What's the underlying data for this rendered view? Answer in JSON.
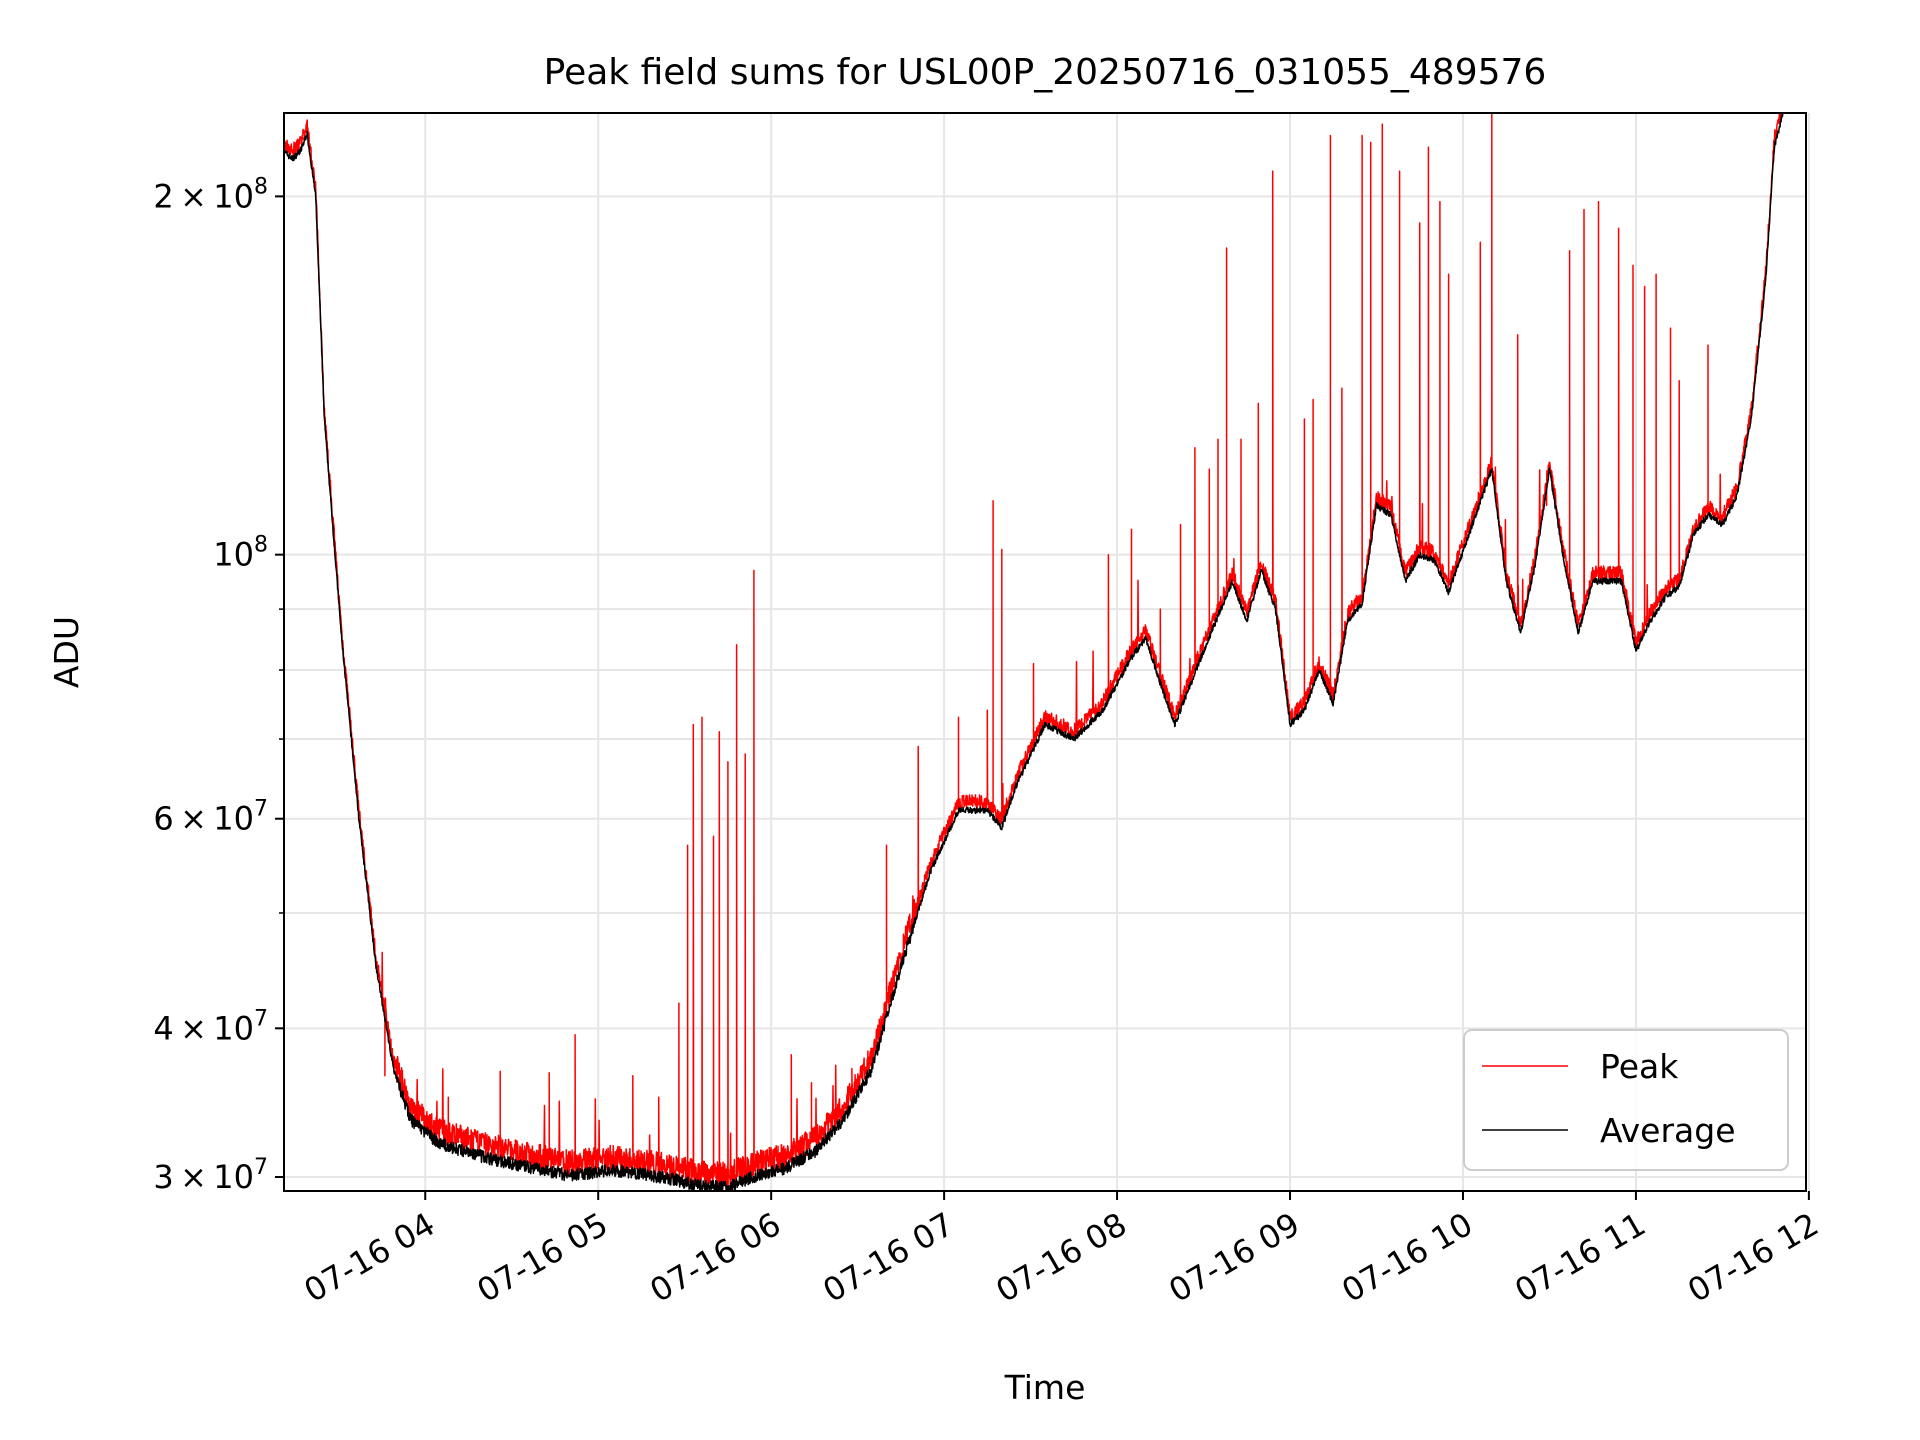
{
  "chart_data": {
    "type": "line",
    "title": "Peak field sums for USL00P_20250716_031055_489576",
    "xlabel": "Time",
    "ylabel": "ADU",
    "yscale": "log",
    "xlim": [
      "2025-07-16 03:11",
      "2025-07-16 11:59"
    ],
    "ylim": [
      29200000,
      235000000
    ],
    "x_ticks": [
      "07-16 04",
      "07-16 05",
      "07-16 06",
      "07-16 07",
      "07-16 08",
      "07-16 09",
      "07-16 10",
      "07-16 11",
      "07-16 12"
    ],
    "y_ticks": [
      {
        "value": 30000000,
        "base": "3",
        "exp": "7"
      },
      {
        "value": 40000000,
        "base": "4",
        "exp": "7"
      },
      {
        "value": 60000000,
        "base": "6",
        "exp": "7"
      },
      {
        "value": 100000000,
        "base": "",
        "exp": "8"
      },
      {
        "value": 200000000,
        "base": "2",
        "exp": "8"
      }
    ],
    "grid": true,
    "legend": {
      "position": "lower-right",
      "entries": [
        "Peak",
        "Average"
      ]
    },
    "series": [
      {
        "name": "Average",
        "color": "#000000",
        "points": [
          [
            "03:11",
            218000000
          ],
          [
            "03:14",
            215000000
          ],
          [
            "03:17",
            219000000
          ],
          [
            "03:19",
            226000000
          ],
          [
            "03:22",
            200000000
          ],
          [
            "03:25",
            130000000
          ],
          [
            "03:31",
            85000000
          ],
          [
            "03:37",
            60000000
          ],
          [
            "03:43",
            45000000
          ],
          [
            "03:49",
            37000000
          ],
          [
            "03:55",
            33500000
          ],
          [
            "04:05",
            32000000
          ],
          [
            "04:20",
            31200000
          ],
          [
            "04:35",
            30600000
          ],
          [
            "04:50",
            30100000
          ],
          [
            "05:05",
            30400000
          ],
          [
            "05:15",
            30200000
          ],
          [
            "05:25",
            29900000
          ],
          [
            "05:35",
            29500000
          ],
          [
            "05:45",
            29400000
          ],
          [
            "05:55",
            30100000
          ],
          [
            "06:05",
            30500000
          ],
          [
            "06:15",
            31500000
          ],
          [
            "06:25",
            33500000
          ],
          [
            "06:35",
            37000000
          ],
          [
            "06:45",
            45000000
          ],
          [
            "06:55",
            54000000
          ],
          [
            "07:05",
            61000000
          ],
          [
            "07:15",
            61000000
          ],
          [
            "07:20",
            59000000
          ],
          [
            "07:25",
            64000000
          ],
          [
            "07:35",
            72000000
          ],
          [
            "07:40",
            71000000
          ],
          [
            "07:45",
            70000000
          ],
          [
            "07:55",
            74000000
          ],
          [
            "08:05",
            82000000
          ],
          [
            "08:10",
            85000000
          ],
          [
            "08:15",
            78000000
          ],
          [
            "08:20",
            72000000
          ],
          [
            "08:30",
            83000000
          ],
          [
            "08:40",
            95000000
          ],
          [
            "08:45",
            88000000
          ],
          [
            "08:50",
            97000000
          ],
          [
            "08:55",
            90000000
          ],
          [
            "09:00",
            72000000
          ],
          [
            "09:05",
            74000000
          ],
          [
            "09:10",
            80000000
          ],
          [
            "09:15",
            75000000
          ],
          [
            "09:20",
            88000000
          ],
          [
            "09:25",
            91000000
          ],
          [
            "09:30",
            110000000
          ],
          [
            "09:35",
            108000000
          ],
          [
            "09:40",
            95000000
          ],
          [
            "09:45",
            100000000
          ],
          [
            "09:50",
            99000000
          ],
          [
            "09:55",
            93000000
          ],
          [
            "10:05",
            109000000
          ],
          [
            "10:10",
            118000000
          ],
          [
            "10:15",
            95000000
          ],
          [
            "10:20",
            86000000
          ],
          [
            "10:25",
            98000000
          ],
          [
            "10:30",
            118000000
          ],
          [
            "10:35",
            99000000
          ],
          [
            "10:40",
            86000000
          ],
          [
            "10:45",
            95000000
          ],
          [
            "10:55",
            95000000
          ],
          [
            "11:00",
            83000000
          ],
          [
            "11:05",
            88000000
          ],
          [
            "11:10",
            92000000
          ],
          [
            "11:15",
            94000000
          ],
          [
            "11:20",
            104000000
          ],
          [
            "11:25",
            108000000
          ],
          [
            "11:30",
            106000000
          ],
          [
            "11:35",
            112000000
          ],
          [
            "11:40",
            130000000
          ],
          [
            "11:45",
            170000000
          ],
          [
            "11:48",
            220000000
          ],
          [
            "11:51",
            235000000
          ]
        ]
      },
      {
        "name": "Peak",
        "color": "#ff0000",
        "spikes": [
          [
            "03:46",
            36500000
          ],
          [
            "03:56",
            34500000
          ],
          [
            "04:08",
            35000000
          ],
          [
            "04:26",
            36800000
          ],
          [
            "04:43",
            36700000
          ],
          [
            "04:52",
            39500000
          ],
          [
            "05:12",
            36500000
          ],
          [
            "05:21",
            35000000
          ],
          [
            "05:28",
            42000000
          ],
          [
            "05:31",
            57000000
          ],
          [
            "05:33",
            72000000
          ],
          [
            "05:36",
            73000000
          ],
          [
            "05:40",
            58000000
          ],
          [
            "05:42",
            71000000
          ],
          [
            "05:45",
            67000000
          ],
          [
            "05:48",
            84000000
          ],
          [
            "05:51",
            68000000
          ],
          [
            "05:54",
            97000000
          ],
          [
            "06:07",
            38000000
          ],
          [
            "06:14",
            36000000
          ],
          [
            "06:28",
            37000000
          ],
          [
            "06:40",
            57000000
          ],
          [
            "06:51",
            69000000
          ],
          [
            "07:05",
            73000000
          ],
          [
            "07:15",
            74000000
          ],
          [
            "07:17",
            111000000
          ],
          [
            "07:20",
            101000000
          ],
          [
            "07:31",
            81000000
          ],
          [
            "07:57",
            100000000
          ],
          [
            "08:05",
            105000000
          ],
          [
            "08:15",
            90000000
          ],
          [
            "08:22",
            106000000
          ],
          [
            "08:27",
            123000000
          ],
          [
            "08:32",
            118000000
          ],
          [
            "08:35",
            125000000
          ],
          [
            "08:38",
            181000000
          ],
          [
            "08:43",
            125000000
          ],
          [
            "08:49",
            134000000
          ],
          [
            "08:54",
            210000000
          ],
          [
            "09:05",
            130000000
          ],
          [
            "09:08",
            135000000
          ],
          [
            "09:14",
            225000000
          ],
          [
            "09:18",
            138000000
          ],
          [
            "09:25",
            225000000
          ],
          [
            "09:28",
            222000000
          ],
          [
            "09:32",
            230000000
          ],
          [
            "09:38",
            210000000
          ],
          [
            "09:45",
            190000000
          ],
          [
            "09:48",
            220000000
          ],
          [
            "09:52",
            198000000
          ],
          [
            "09:55",
            172000000
          ],
          [
            "10:06",
            183000000
          ],
          [
            "10:10",
            235000000
          ],
          [
            "10:19",
            153000000
          ],
          [
            "10:29",
            110000000
          ],
          [
            "10:37",
            180000000
          ],
          [
            "10:42",
            195000000
          ],
          [
            "10:47",
            198000000
          ],
          [
            "10:54",
            188000000
          ],
          [
            "10:59",
            175000000
          ],
          [
            "11:03",
            168000000
          ],
          [
            "11:07",
            172000000
          ],
          [
            "11:12",
            155000000
          ],
          [
            "11:15",
            140000000
          ],
          [
            "11:25",
            150000000
          ]
        ]
      }
    ]
  }
}
